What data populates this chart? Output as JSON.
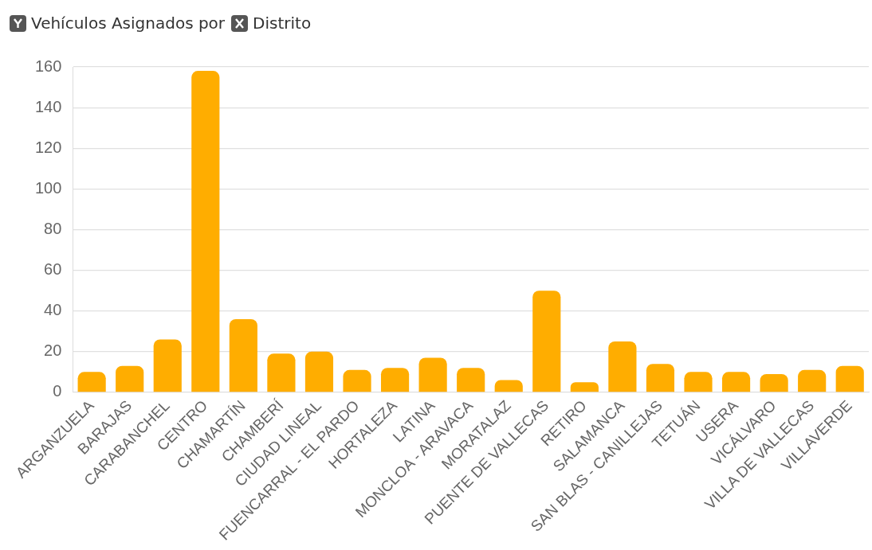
{
  "chart_data": {
    "type": "bar",
    "ylabel": "Vehículos Asignados por",
    "xlabel": "Distrito",
    "categories": [
      "ARGANZUELA",
      "BARAJAS",
      "CARABANCHEL",
      "CENTRO",
      "CHAMARTÍN",
      "CHAMBERÍ",
      "CIUDAD LINEAL",
      "FUENCARRAL - EL PARDO",
      "HORTALEZA",
      "LATINA",
      "MONCLOA - ARAVACA",
      "MORATALAZ",
      "PUENTE DE VALLECAS",
      "RETIRO",
      "SALAMANCA",
      "SAN BLAS - CANILLEJAS",
      "TETUÁN",
      "USERA",
      "VICÁLVARO",
      "VILLA DE VALLECAS",
      "VILLAVERDE"
    ],
    "values": [
      10,
      13,
      26,
      158,
      36,
      19,
      20,
      11,
      12,
      17,
      12,
      6,
      50,
      5,
      25,
      14,
      10,
      10,
      9,
      11,
      13
    ],
    "color": "#ffad00",
    "ylim": [
      0,
      160
    ],
    "yticks": [
      0,
      20,
      40,
      60,
      80,
      100,
      120,
      140,
      160
    ],
    "grid": "y",
    "legend": false
  }
}
